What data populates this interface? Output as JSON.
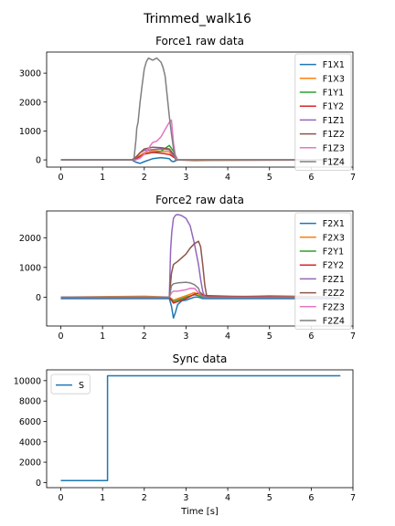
{
  "figure_title": "Trimmed_walk16",
  "chart_data": [
    {
      "type": "line",
      "title": "Force1 raw data",
      "xlabel": "",
      "xlim": [
        -0.34,
        7.0
      ],
      "ylim": [
        -250,
        3730
      ],
      "xticks": [
        0,
        1,
        2,
        3,
        4,
        5,
        6,
        7
      ],
      "yticks": [
        0,
        1000,
        2000,
        3000
      ],
      "legend_position": "right",
      "series": [
        {
          "name": "F1X1",
          "color": "#1f77b4",
          "x": [
            0,
            1.7,
            1.8,
            1.9,
            2.0,
            2.2,
            2.4,
            2.6,
            2.65,
            2.7,
            2.8,
            6.7
          ],
          "y": [
            0,
            0,
            -80,
            -120,
            -60,
            40,
            80,
            40,
            -40,
            -60,
            0,
            0
          ]
        },
        {
          "name": "F1X3",
          "color": "#ff7f0e",
          "x": [
            0,
            1.7,
            1.8,
            1.9,
            2.0,
            2.2,
            2.4,
            2.6,
            2.7,
            2.8,
            3.2,
            3.5,
            6.7
          ],
          "y": [
            0,
            0,
            60,
            150,
            250,
            320,
            300,
            280,
            100,
            0,
            -30,
            -20,
            0
          ]
        },
        {
          "name": "F1Y1",
          "color": "#2ca02c",
          "x": [
            0,
            1.7,
            1.8,
            1.9,
            2.0,
            2.2,
            2.4,
            2.6,
            2.7,
            2.8,
            6.7
          ],
          "y": [
            0,
            0,
            50,
            120,
            200,
            260,
            300,
            500,
            300,
            0,
            0
          ]
        },
        {
          "name": "F1Y2",
          "color": "#d62728",
          "x": [
            0,
            1.7,
            1.8,
            1.9,
            2.0,
            2.2,
            2.4,
            2.6,
            2.7,
            2.8,
            6.7
          ],
          "y": [
            0,
            0,
            40,
            120,
            200,
            260,
            230,
            190,
            100,
            0,
            0
          ]
        },
        {
          "name": "F1Z1",
          "color": "#9467bd",
          "x": [
            0,
            1.7,
            1.8,
            1.9,
            2.0,
            2.2,
            2.4,
            2.6,
            2.7,
            2.8,
            6.7
          ],
          "y": [
            0,
            0,
            80,
            250,
            330,
            360,
            380,
            350,
            150,
            0,
            0
          ]
        },
        {
          "name": "F1Z2",
          "color": "#8c564b",
          "x": [
            0,
            1.7,
            1.8,
            1.9,
            2.0,
            2.2,
            2.4,
            2.6,
            2.7,
            2.8,
            6.7
          ],
          "y": [
            0,
            0,
            100,
            250,
            380,
            440,
            420,
            380,
            200,
            0,
            0
          ]
        },
        {
          "name": "F1Z3",
          "color": "#e377c2",
          "x": [
            0,
            1.8,
            1.9,
            2.0,
            2.1,
            2.2,
            2.3,
            2.4,
            2.5,
            2.6,
            2.65,
            2.7,
            2.75,
            2.8,
            6.7
          ],
          "y": [
            0,
            0,
            60,
            200,
            400,
            600,
            650,
            800,
            1050,
            1300,
            1380,
            600,
            100,
            0,
            0
          ]
        },
        {
          "name": "F1Z4",
          "color": "#7f7f7f",
          "x": [
            0,
            1.75,
            1.8,
            1.82,
            1.85,
            1.9,
            1.95,
            2.0,
            2.05,
            2.1,
            2.2,
            2.3,
            2.4,
            2.45,
            2.5,
            2.55,
            2.6,
            2.65,
            2.7,
            2.75,
            6.7
          ],
          "y": [
            0,
            0,
            700,
            1100,
            1300,
            2000,
            2600,
            3150,
            3400,
            3520,
            3450,
            3520,
            3380,
            3200,
            2900,
            2200,
            1500,
            900,
            400,
            0,
            0
          ]
        }
      ]
    },
    {
      "type": "line",
      "title": "Force2 raw data",
      "xlabel": "",
      "xlim": [
        -0.34,
        7.0
      ],
      "ylim": [
        -970,
        2900
      ],
      "xticks": [
        0,
        1,
        2,
        3,
        4,
        5,
        6,
        7
      ],
      "yticks": [
        0,
        1000,
        2000
      ],
      "legend_position": "right",
      "series": [
        {
          "name": "F2X1",
          "color": "#1f77b4",
          "x": [
            0,
            2.6,
            2.65,
            2.7,
            2.75,
            2.8,
            2.9,
            3.0,
            3.1,
            3.2,
            3.3,
            3.4,
            6.7
          ],
          "y": [
            -50,
            -50,
            -300,
            -700,
            -500,
            -250,
            -120,
            -100,
            -50,
            0,
            0,
            -50,
            -50
          ]
        },
        {
          "name": "F2X3",
          "color": "#ff7f0e",
          "x": [
            0,
            1.2,
            2.0,
            2.6,
            2.7,
            2.8,
            3.0,
            3.2,
            3.3,
            3.4,
            4.0,
            5.0,
            6.7
          ],
          "y": [
            0,
            20,
            30,
            0,
            -100,
            -50,
            50,
            150,
            100,
            50,
            0,
            50,
            0
          ]
        },
        {
          "name": "F2Y1",
          "color": "#2ca02c",
          "x": [
            0,
            2.6,
            2.7,
            2.8,
            3.0,
            3.2,
            3.3,
            3.4,
            6.7
          ],
          "y": [
            0,
            0,
            -150,
            -100,
            0,
            80,
            50,
            0,
            0
          ]
        },
        {
          "name": "F2Y2",
          "color": "#d62728",
          "x": [
            0,
            2.6,
            2.7,
            2.8,
            3.0,
            3.2,
            3.35,
            3.4,
            3.5,
            4.0,
            6.7
          ],
          "y": [
            0,
            0,
            -200,
            -150,
            -50,
            100,
            150,
            80,
            50,
            30,
            0
          ]
        },
        {
          "name": "F2Z1",
          "color": "#9467bd",
          "x": [
            0,
            2.6,
            2.63,
            2.66,
            2.7,
            2.75,
            2.8,
            2.9,
            3.0,
            3.1,
            3.2,
            3.3,
            3.35,
            3.4,
            3.45,
            6.7
          ],
          "y": [
            0,
            0,
            1600,
            2200,
            2650,
            2760,
            2780,
            2740,
            2650,
            2400,
            1800,
            1100,
            600,
            200,
            0,
            0
          ]
        },
        {
          "name": "F2Z2",
          "color": "#8c564b",
          "x": [
            0,
            2.6,
            2.65,
            2.7,
            2.8,
            3.0,
            3.1,
            3.2,
            3.3,
            3.35,
            3.4,
            3.45,
            3.5,
            6.7
          ],
          "y": [
            0,
            0,
            800,
            1100,
            1200,
            1450,
            1650,
            1800,
            1880,
            1700,
            1100,
            400,
            0,
            0
          ]
        },
        {
          "name": "F2Z3",
          "color": "#e377c2",
          "x": [
            0,
            2.6,
            2.65,
            2.7,
            2.8,
            3.0,
            3.1,
            3.2,
            3.3,
            3.4,
            6.7
          ],
          "y": [
            0,
            0,
            150,
            200,
            200,
            250,
            300,
            300,
            150,
            0,
            0
          ]
        },
        {
          "name": "F2Z4",
          "color": "#7f7f7f",
          "x": [
            0,
            2.6,
            2.65,
            2.7,
            2.8,
            3.0,
            3.1,
            3.2,
            3.3,
            3.35,
            3.4,
            6.7
          ],
          "y": [
            0,
            0,
            380,
            450,
            480,
            500,
            480,
            420,
            300,
            100,
            0,
            0
          ]
        }
      ]
    },
    {
      "type": "line",
      "title": "Sync data",
      "xlabel": "Time [s]",
      "xlim": [
        -0.34,
        7.0
      ],
      "ylim": [
        -500,
        11060
      ],
      "xticks": [
        0,
        1,
        2,
        3,
        4,
        5,
        6,
        7
      ],
      "yticks": [
        0,
        2000,
        4000,
        6000,
        8000,
        10000
      ],
      "legend_position": "top-left",
      "series": [
        {
          "name": "S",
          "color": "#1f77b4",
          "x": [
            0,
            1.12,
            1.12,
            6.7
          ],
          "y": [
            200,
            200,
            10480,
            10480
          ]
        }
      ]
    }
  ]
}
